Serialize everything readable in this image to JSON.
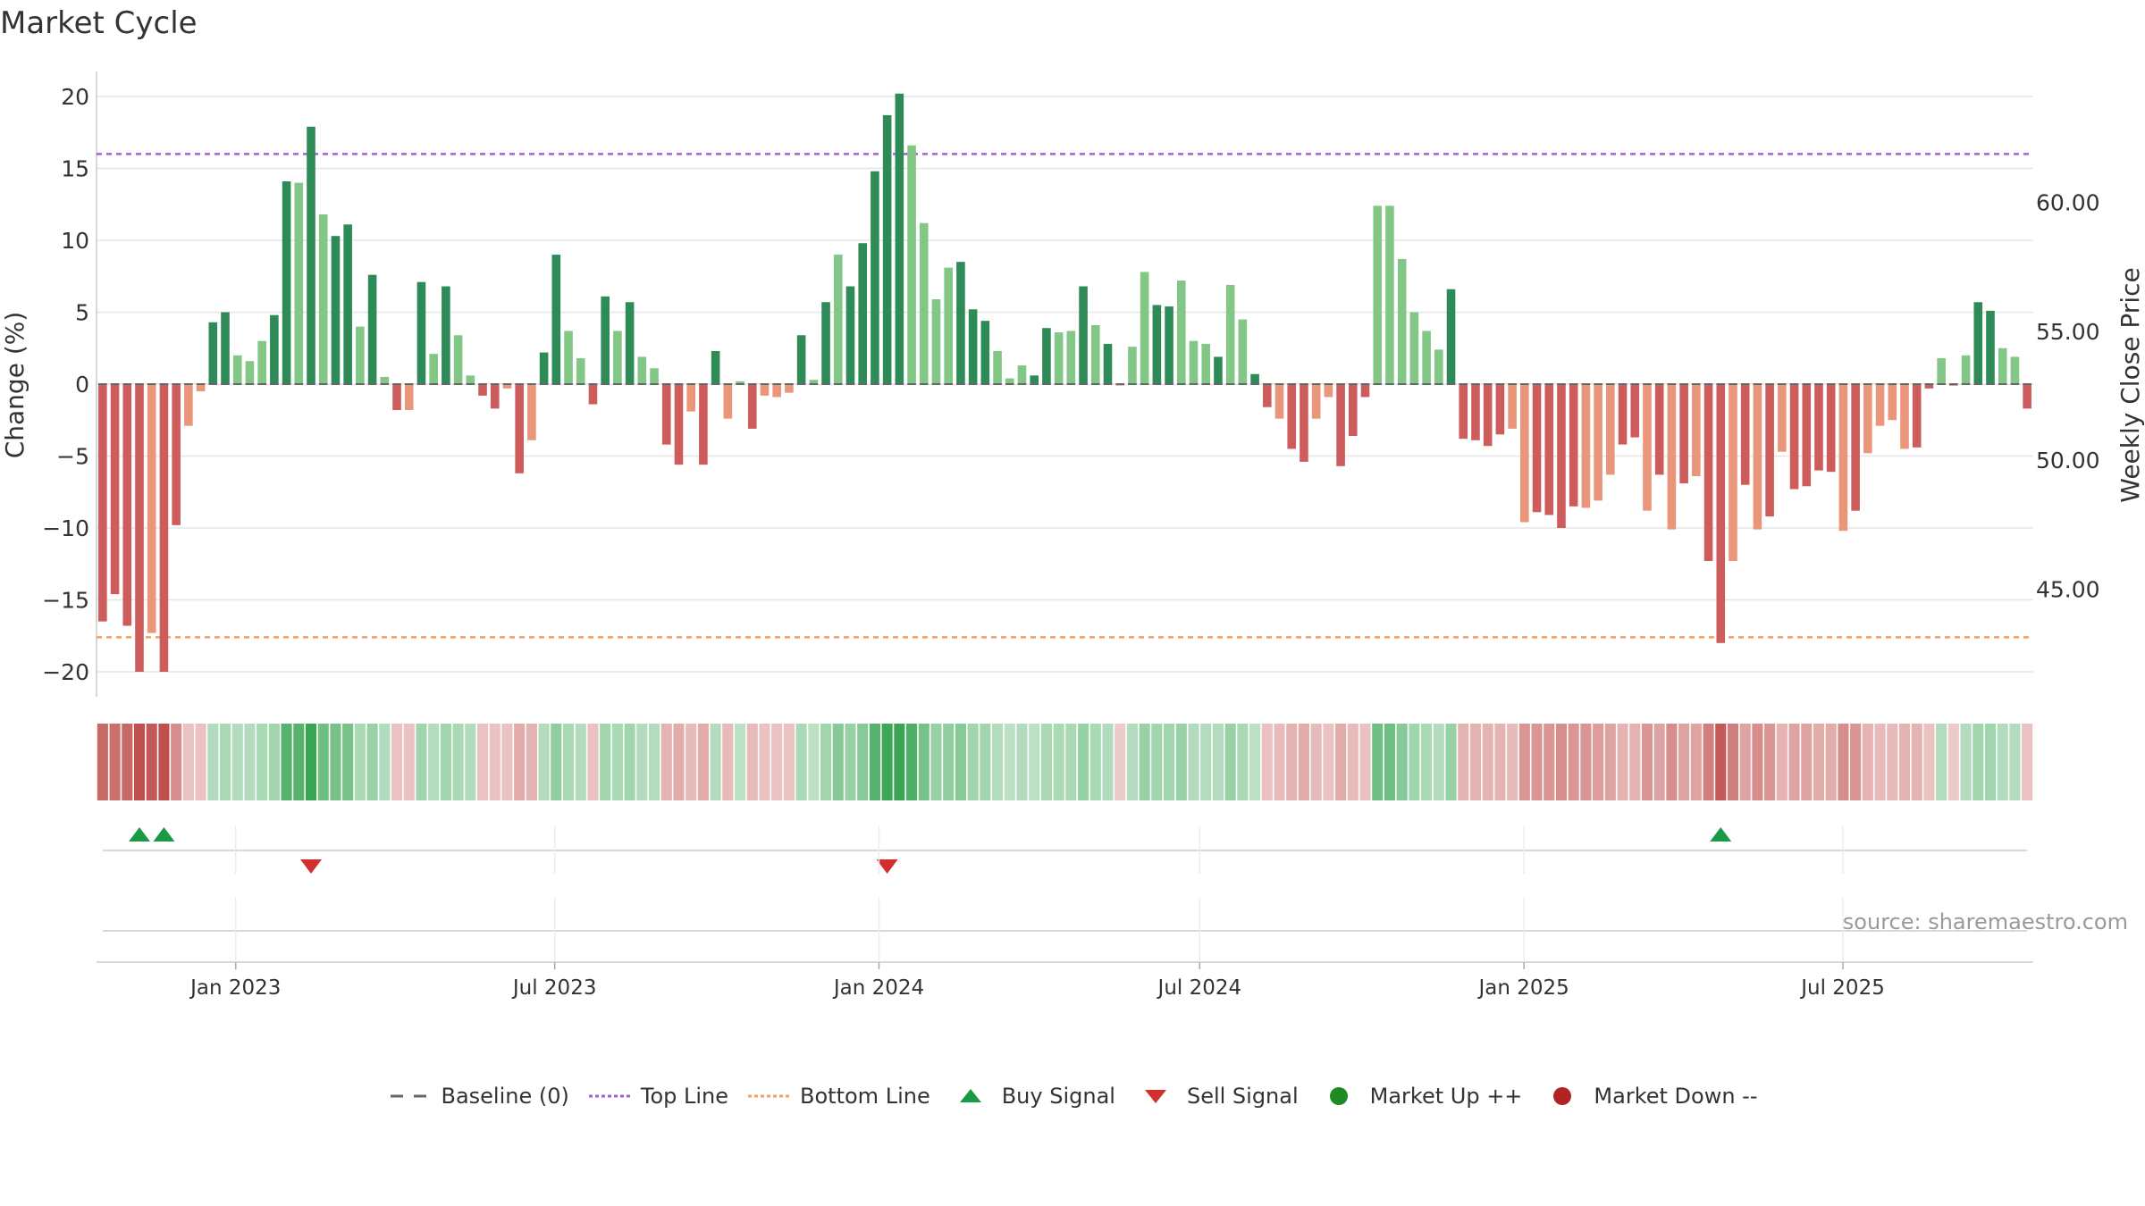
{
  "title": "Market Cycle",
  "source": "source: sharemaestro.com",
  "colors": {
    "strong_up": "#2e8b57",
    "up": "#82c785",
    "strong_down": "#cd5c5c",
    "down": "#e9967a",
    "top_line": "#a25fd6",
    "bottom_line": "#f4a064",
    "baseline": "#666666",
    "buy": "#1a9a45",
    "sell": "#d32f2f",
    "market_up": "#1e8b22",
    "market_down": "#b22222"
  },
  "legend": [
    {
      "key": "baseline",
      "label": "Baseline (0)",
      "icon": "dash-line-icon"
    },
    {
      "key": "top",
      "label": "Top Line",
      "icon": "dotted-line-icon"
    },
    {
      "key": "bottom",
      "label": "Bottom Line",
      "icon": "dotted-line-icon"
    },
    {
      "key": "buy",
      "label": "Buy Signal",
      "icon": "triangle-up-icon"
    },
    {
      "key": "sell",
      "label": "Sell Signal",
      "icon": "triangle-down-icon"
    },
    {
      "key": "mup",
      "label": "Market Up ++",
      "icon": "circle-icon"
    },
    {
      "key": "mdown",
      "label": "Market Down --",
      "icon": "circle-icon"
    }
  ],
  "chart_data": {
    "type": "bar",
    "title": "Market Cycle",
    "ylabel": "Change (%)",
    "y2label": "Weekly Close Price",
    "ylim": [
      -21.5,
      21.5
    ],
    "yticks": [
      -20,
      -15,
      -10,
      -5,
      0,
      5,
      10,
      15,
      20
    ],
    "y2ticks": [
      "45.00",
      "50.00",
      "55.00",
      "60.00"
    ],
    "y2_values": [
      45,
      50,
      55,
      60
    ],
    "y2lim": [
      41.8,
      64.1
    ],
    "top_line": 16,
    "bottom_line": -17.6,
    "x_start": "2022-10-14",
    "x_end": "2025-10-17",
    "xticks": [
      {
        "label": "Jan 2023",
        "date": "2023-01-01"
      },
      {
        "label": "Jul 2023",
        "date": "2023-07-01"
      },
      {
        "label": "Jan 2024",
        "date": "2024-01-01"
      },
      {
        "label": "Jul 2024",
        "date": "2024-07-01"
      },
      {
        "label": "Jan 2025",
        "date": "2025-01-01"
      },
      {
        "label": "Jul 2025",
        "date": "2025-07-01"
      }
    ],
    "values": [
      -16.5,
      -14.6,
      -16.8,
      -20,
      -17.3,
      -20,
      -9.8,
      -2.9,
      -0.5,
      4.3,
      5,
      2,
      1.6,
      3,
      4.8,
      14.1,
      14,
      17.9,
      11.8,
      10.3,
      11.1,
      4,
      7.6,
      0.5,
      -1.8,
      -1.8,
      7.1,
      2.1,
      6.8,
      3.4,
      0.6,
      -0.8,
      -1.7,
      -0.3,
      -6.2,
      -3.9,
      2.2,
      9,
      3.7,
      1.8,
      -1.4,
      6.1,
      3.7,
      5.7,
      1.9,
      1.1,
      -4.2,
      -5.6,
      -1.9,
      -5.6,
      2.3,
      -2.4,
      0.2,
      -3.1,
      -0.8,
      -0.9,
      -0.6,
      3.4,
      0.3,
      5.7,
      9,
      6.8,
      9.8,
      14.8,
      18.7,
      20.2,
      16.6,
      11.2,
      5.9,
      8.1,
      8.5,
      5.2,
      4.4,
      2.3,
      0.4,
      1.3,
      0.6,
      3.9,
      3.6,
      3.7,
      6.8,
      4.1,
      2.8,
      -0.1,
      2.6,
      7.8,
      5.5,
      5.4,
      7.2,
      3,
      2.8,
      1.9,
      6.9,
      4.5,
      0.7,
      -1.6,
      -2.4,
      -4.5,
      -5.4,
      -2.4,
      -0.9,
      -5.7,
      -3.6,
      -0.9,
      12.4,
      12.4,
      8.7,
      5,
      3.7,
      2.4,
      6.6,
      -3.8,
      -3.9,
      -4.3,
      -3.5,
      -3.1,
      -9.6,
      -8.9,
      -9.1,
      -10,
      -8.5,
      -8.6,
      -8.1,
      -6.3,
      -4.2,
      -3.7,
      -8.8,
      -6.3,
      -10.1,
      -6.9,
      -6.4,
      -12.3,
      -18,
      -12.3,
      -7,
      -10.1,
      -9.2,
      -4.7,
      -7.3,
      -7.1,
      -6,
      -6.1,
      -10.2,
      -8.8,
      -4.8,
      -2.9,
      -2.5,
      -4.5,
      -4.4,
      -0.3,
      1.8,
      -0.1,
      2,
      5.7,
      5.1,
      2.5,
      1.9,
      -1.7
    ],
    "classes": "SSSSDSSDDSSUUUSSUSUSSUSUSDSUSUUSSDSDSSUUSSUSUUSSDSSDDSDDDSUSUSSSSSUUUUSSSUUUSSUUSUSUUUSSUUUSUUSSDSSDDSSSDUUUUUSSSSSDDSSSSDDDSSDSDSDSSDSDSDSSSSDSDDDDSSUSUSSUUS",
    "strip": [
      -0.75,
      -0.7,
      -0.75,
      -0.95,
      -0.85,
      -0.95,
      -0.5,
      -0.15,
      -0.15,
      0.2,
      0.25,
      0.2,
      0.2,
      0.25,
      0.3,
      0.75,
      0.75,
      0.95,
      0.6,
      0.55,
      0.55,
      0.25,
      0.35,
      0.2,
      -0.15,
      -0.15,
      0.3,
      0.2,
      0.3,
      0.25,
      0.2,
      -0.15,
      -0.15,
      -0.15,
      -0.3,
      -0.25,
      0.2,
      0.4,
      0.25,
      0.2,
      -0.15,
      0.3,
      0.25,
      0.3,
      0.2,
      0.2,
      -0.25,
      -0.3,
      -0.2,
      -0.3,
      0.2,
      -0.2,
      0.15,
      -0.2,
      -0.15,
      -0.15,
      -0.15,
      0.25,
      0.15,
      0.3,
      0.45,
      0.35,
      0.45,
      0.75,
      0.9,
      0.95,
      0.8,
      0.55,
      0.35,
      0.4,
      0.45,
      0.3,
      0.3,
      0.2,
      0.15,
      0.2,
      0.15,
      0.25,
      0.25,
      0.25,
      0.35,
      0.25,
      0.2,
      -0.1,
      0.2,
      0.35,
      0.3,
      0.3,
      0.35,
      0.2,
      0.2,
      0.2,
      0.35,
      0.25,
      0.15,
      -0.15,
      -0.2,
      -0.25,
      -0.3,
      -0.2,
      -0.15,
      -0.3,
      -0.2,
      -0.15,
      0.6,
      0.6,
      0.45,
      0.3,
      0.25,
      0.2,
      0.35,
      -0.25,
      -0.25,
      -0.25,
      -0.25,
      -0.2,
      -0.45,
      -0.45,
      -0.45,
      -0.5,
      -0.45,
      -0.45,
      -0.4,
      -0.35,
      -0.25,
      -0.25,
      -0.45,
      -0.35,
      -0.5,
      -0.35,
      -0.35,
      -0.6,
      -0.85,
      -0.6,
      -0.35,
      -0.5,
      -0.45,
      -0.25,
      -0.35,
      -0.35,
      -0.3,
      -0.3,
      -0.5,
      -0.45,
      -0.25,
      -0.2,
      -0.2,
      -0.25,
      -0.25,
      -0.15,
      0.2,
      -0.1,
      0.2,
      0.3,
      0.3,
      0.2,
      0.2,
      -0.15
    ],
    "buy_signals": [
      3,
      5,
      132
    ],
    "sell_signals": [
      17,
      64
    ],
    "market_up": [],
    "market_down": []
  }
}
